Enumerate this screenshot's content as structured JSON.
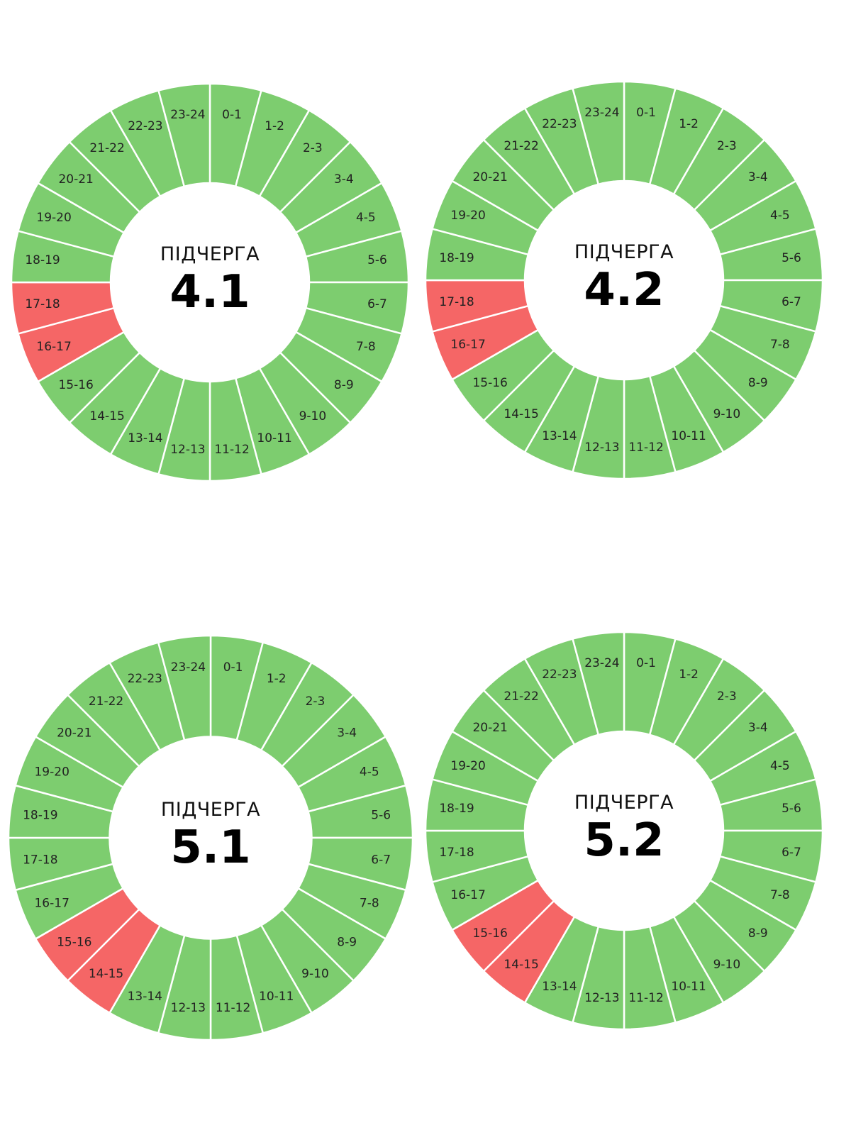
{
  "colors": {
    "on": "#7dcd6f",
    "off": "#f56666",
    "separator": "#ffffff"
  },
  "chart_data": [
    {
      "type": "pie",
      "center_label": "ПІДЧЕРГА",
      "center_value": "4.1",
      "categories": [
        "0-1",
        "1-2",
        "2-3",
        "3-4",
        "4-5",
        "5-6",
        "6-7",
        "7-8",
        "8-9",
        "9-10",
        "10-11",
        "11-12",
        "12-13",
        "13-14",
        "14-15",
        "15-16",
        "16-17",
        "17-18",
        "18-19",
        "19-20",
        "20-21",
        "21-22",
        "22-23",
        "23-24"
      ],
      "off_hours": [
        "16-17",
        "17-18"
      ]
    },
    {
      "type": "pie",
      "center_label": "ПІДЧЕРГА",
      "center_value": "4.2",
      "categories": [
        "0-1",
        "1-2",
        "2-3",
        "3-4",
        "4-5",
        "5-6",
        "6-7",
        "7-8",
        "8-9",
        "9-10",
        "10-11",
        "11-12",
        "12-13",
        "13-14",
        "14-15",
        "15-16",
        "16-17",
        "17-18",
        "18-19",
        "19-20",
        "20-21",
        "21-22",
        "22-23",
        "23-24"
      ],
      "off_hours": [
        "16-17",
        "17-18"
      ]
    },
    {
      "type": "pie",
      "center_label": "ПІДЧЕРГА",
      "center_value": "5.1",
      "categories": [
        "0-1",
        "1-2",
        "2-3",
        "3-4",
        "4-5",
        "5-6",
        "6-7",
        "7-8",
        "8-9",
        "9-10",
        "10-11",
        "11-12",
        "12-13",
        "13-14",
        "14-15",
        "15-16",
        "16-17",
        "17-18",
        "18-19",
        "19-20",
        "20-21",
        "21-22",
        "22-23",
        "23-24"
      ],
      "off_hours": [
        "14-15",
        "15-16"
      ]
    },
    {
      "type": "pie",
      "center_label": "ПІДЧЕРГА",
      "center_value": "5.2",
      "categories": [
        "0-1",
        "1-2",
        "2-3",
        "3-4",
        "4-5",
        "5-6",
        "6-7",
        "7-8",
        "8-9",
        "9-10",
        "10-11",
        "11-12",
        "12-13",
        "13-14",
        "14-15",
        "15-16",
        "16-17",
        "17-18",
        "18-19",
        "19-20",
        "20-21",
        "21-22",
        "22-23",
        "23-24"
      ],
      "off_hours": [
        "14-15",
        "15-16"
      ]
    }
  ]
}
